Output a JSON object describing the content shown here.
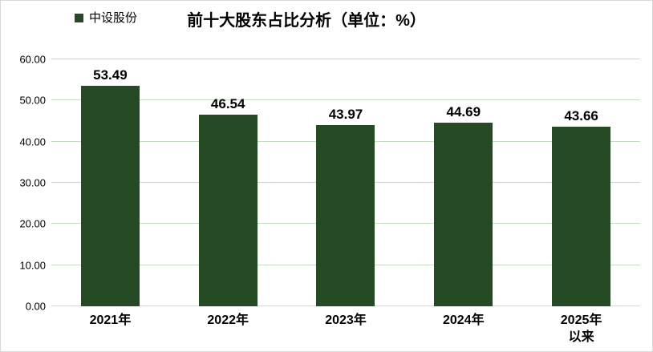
{
  "frame": {
    "background_color": "#ffffff",
    "border_color": "#d9d9d9"
  },
  "chart_data": {
    "type": "bar",
    "title": "前十大股东占比分析（单位：%）",
    "title_color": "#000000",
    "legend": [
      "中设股份"
    ],
    "legend_position": "top-left",
    "categories": [
      "2021年",
      "2022年",
      "2023年",
      "2024年",
      "2025年以来"
    ],
    "category_lines": [
      [
        "2021年"
      ],
      [
        "2022年"
      ],
      [
        "2023年"
      ],
      [
        "2024年"
      ],
      [
        "2025年",
        "以来"
      ]
    ],
    "values": [
      53.49,
      46.54,
      43.97,
      44.69,
      43.66
    ],
    "value_labels": [
      "53.49",
      "46.54",
      "43.97",
      "44.69",
      "43.66"
    ],
    "xlabel": "",
    "ylabel": "",
    "ylim": [
      0,
      60
    ],
    "y_tick_step": 10,
    "y_tick_labels": [
      "60.00",
      "50.00",
      "40.00",
      "30.00",
      "20.00",
      "10.00",
      "0.00"
    ],
    "grid": true,
    "bar_color": "#254a24",
    "gridline_color": "#c3dcc2",
    "axis_line_color": "#d9d9d9",
    "label_color": "#000000"
  }
}
